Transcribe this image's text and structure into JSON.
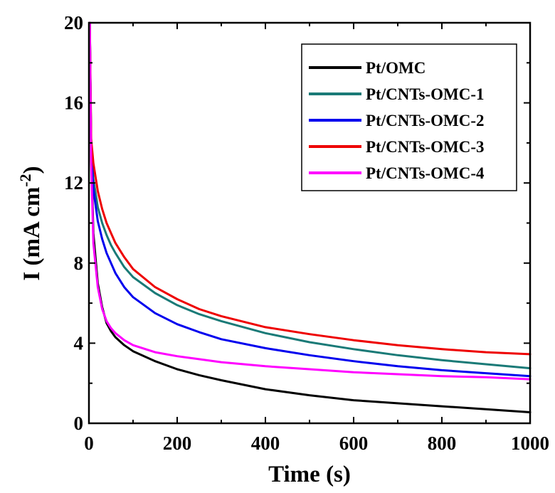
{
  "chart_data": {
    "type": "line",
    "xlabel": "Time (s)",
    "ylabel_main": "I (mA cm",
    "ylabel_sup": "-2",
    "ylabel_close": ")",
    "xlim": [
      0,
      1000
    ],
    "ylim": [
      0,
      20
    ],
    "xticks": [
      0,
      200,
      400,
      600,
      800,
      1000
    ],
    "yticks": [
      0,
      4,
      8,
      12,
      16,
      20
    ],
    "xtick_labels": [
      "0",
      "200",
      "400",
      "600",
      "800",
      "1000"
    ],
    "ytick_labels": [
      "0",
      "4",
      "8",
      "12",
      "16",
      "20"
    ],
    "grid": false,
    "legend_position": "top-right",
    "series": [
      {
        "name": "Pt/OMC",
        "color": "#000000",
        "x": [
          2,
          5,
          10,
          20,
          30,
          40,
          50,
          60,
          80,
          100,
          150,
          200,
          250,
          300,
          400,
          500,
          600,
          700,
          800,
          900,
          1000
        ],
        "y": [
          20,
          13.5,
          9.5,
          7.0,
          5.8,
          5.0,
          4.6,
          4.3,
          3.9,
          3.6,
          3.1,
          2.7,
          2.4,
          2.15,
          1.7,
          1.4,
          1.15,
          1.0,
          0.85,
          0.7,
          0.55
        ]
      },
      {
        "name": "Pt/CNTs-OMC-1",
        "color": "#1a7a77",
        "x": [
          2,
          5,
          10,
          20,
          30,
          40,
          50,
          60,
          80,
          100,
          150,
          200,
          250,
          300,
          400,
          500,
          600,
          700,
          800,
          900,
          1000
        ],
        "y": [
          20,
          14.0,
          12.2,
          10.8,
          10.0,
          9.4,
          8.9,
          8.5,
          7.8,
          7.3,
          6.5,
          5.9,
          5.45,
          5.1,
          4.5,
          4.05,
          3.7,
          3.4,
          3.15,
          2.95,
          2.75
        ]
      },
      {
        "name": "Pt/CNTs-OMC-2",
        "color": "#0000ee",
        "x": [
          2,
          5,
          10,
          20,
          30,
          40,
          50,
          60,
          80,
          100,
          150,
          200,
          250,
          300,
          400,
          500,
          600,
          700,
          800,
          900,
          1000
        ],
        "y": [
          20,
          13.5,
          11.7,
          10.1,
          9.2,
          8.5,
          8.0,
          7.5,
          6.8,
          6.3,
          5.5,
          4.95,
          4.55,
          4.2,
          3.75,
          3.4,
          3.1,
          2.85,
          2.65,
          2.5,
          2.35
        ]
      },
      {
        "name": "Pt/CNTs-OMC-3",
        "color": "#ee0000",
        "x": [
          2,
          5,
          10,
          20,
          30,
          40,
          50,
          60,
          80,
          100,
          150,
          200,
          250,
          300,
          400,
          500,
          600,
          700,
          800,
          900,
          1000
        ],
        "y": [
          20,
          14.2,
          13.0,
          11.6,
          10.7,
          10.0,
          9.5,
          9.0,
          8.3,
          7.7,
          6.8,
          6.2,
          5.7,
          5.35,
          4.8,
          4.45,
          4.15,
          3.9,
          3.7,
          3.55,
          3.45
        ]
      },
      {
        "name": "Pt/CNTs-OMC-4",
        "color": "#ff00ff",
        "x": [
          2,
          5,
          10,
          20,
          30,
          40,
          50,
          60,
          80,
          100,
          150,
          200,
          250,
          300,
          400,
          500,
          600,
          700,
          800,
          900,
          1000
        ],
        "y": [
          20,
          13.0,
          9.0,
          6.8,
          5.7,
          5.1,
          4.75,
          4.5,
          4.15,
          3.9,
          3.55,
          3.35,
          3.2,
          3.05,
          2.85,
          2.7,
          2.55,
          2.45,
          2.35,
          2.3,
          2.2
        ]
      }
    ]
  }
}
